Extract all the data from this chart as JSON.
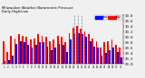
{
  "title": "Milwaukee Weather Barometric Pressure",
  "subtitle": "Daily High/Low",
  "background_color": "#f0f0f0",
  "high_color": "#ff0000",
  "low_color": "#0000ff",
  "ylim": [
    29.0,
    30.85
  ],
  "yticks": [
    29.0,
    29.2,
    29.4,
    29.6,
    29.8,
    30.0,
    30.2,
    30.4,
    30.6,
    30.8
  ],
  "dashed_vlines": [
    18,
    19,
    20
  ],
  "highs": [
    29.85,
    29.45,
    30.05,
    29.95,
    30.1,
    30.05,
    30.0,
    29.9,
    29.95,
    30.1,
    30.05,
    30.0,
    29.85,
    29.9,
    30.05,
    30.0,
    29.8,
    30.15,
    30.35,
    30.4,
    30.3,
    30.2,
    30.1,
    29.95,
    29.85,
    29.6,
    29.8,
    29.85,
    29.9,
    29.7,
    29.6
  ],
  "lows": [
    29.1,
    29.15,
    29.3,
    29.75,
    29.85,
    29.8,
    29.7,
    29.6,
    29.7,
    29.8,
    29.8,
    29.65,
    29.5,
    29.6,
    29.75,
    29.7,
    29.45,
    29.9,
    30.1,
    30.15,
    30.1,
    30.0,
    29.85,
    29.65,
    29.6,
    29.3,
    29.4,
    29.5,
    29.6,
    29.45,
    29.25
  ],
  "xlabels": [
    "1",
    "2",
    "3",
    "4",
    "5",
    "6",
    "7",
    "8",
    "9",
    "10",
    "11",
    "12",
    "13",
    "14",
    "15",
    "16",
    "17",
    "18",
    "19",
    "20",
    "21",
    "22",
    "23",
    "24",
    "25",
    "26",
    "27",
    "28",
    "29",
    "30",
    "31"
  ]
}
